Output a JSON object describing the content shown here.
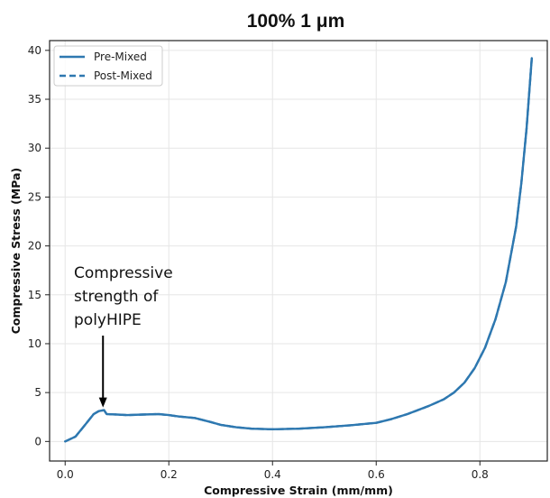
{
  "chart_data": {
    "type": "line",
    "title": "100% 1 μm",
    "xlabel": "Compressive Strain (mm/mm)",
    "ylabel": "Compressive Stress (MPa)",
    "xlim": [
      -0.03,
      0.93
    ],
    "ylim": [
      -2,
      41
    ],
    "xticks": [
      0.0,
      0.2,
      0.4,
      0.6,
      0.8
    ],
    "xtick_labels": [
      "0.0",
      "0.2",
      "0.4",
      "0.6",
      "0.8"
    ],
    "yticks": [
      0,
      5,
      10,
      15,
      20,
      25,
      30,
      35,
      40
    ],
    "ytick_labels": [
      "0",
      "5",
      "10",
      "15",
      "20",
      "25",
      "30",
      "35",
      "40"
    ],
    "grid": true,
    "legend": "top-left",
    "colors": {
      "series": "#2e78b0"
    },
    "series": [
      {
        "name": "Pre-Mixed",
        "style": "solid",
        "x": [
          0.0,
          0.02,
          0.04,
          0.055,
          0.065,
          0.075,
          0.08,
          0.1,
          0.12,
          0.15,
          0.18,
          0.2,
          0.22,
          0.25,
          0.28,
          0.3,
          0.33,
          0.36,
          0.4,
          0.45,
          0.5,
          0.55,
          0.6,
          0.63,
          0.66,
          0.7,
          0.73,
          0.75,
          0.77,
          0.79,
          0.81,
          0.83,
          0.85,
          0.87,
          0.88,
          0.89,
          0.9
        ],
        "y": [
          0.0,
          0.5,
          1.8,
          2.8,
          3.1,
          3.2,
          2.8,
          2.75,
          2.7,
          2.75,
          2.8,
          2.7,
          2.55,
          2.4,
          2.0,
          1.7,
          1.45,
          1.3,
          1.25,
          1.3,
          1.45,
          1.65,
          1.9,
          2.3,
          2.8,
          3.6,
          4.3,
          5.0,
          6.0,
          7.5,
          9.6,
          12.5,
          16.3,
          22.0,
          26.5,
          32.0,
          39.2
        ]
      },
      {
        "name": "Post-Mixed",
        "style": "dashed",
        "x": [
          0.0,
          0.02,
          0.04,
          0.055,
          0.065,
          0.075,
          0.08,
          0.1,
          0.12,
          0.15,
          0.18,
          0.2,
          0.22,
          0.25,
          0.28,
          0.3,
          0.33,
          0.36,
          0.4,
          0.45,
          0.5,
          0.55,
          0.6,
          0.63,
          0.66,
          0.7,
          0.73,
          0.75,
          0.77,
          0.79,
          0.81,
          0.83,
          0.85,
          0.87,
          0.88,
          0.89,
          0.9
        ],
        "y": [
          0.0,
          0.5,
          1.8,
          2.8,
          3.1,
          3.2,
          2.8,
          2.75,
          2.7,
          2.75,
          2.8,
          2.7,
          2.55,
          2.4,
          2.0,
          1.7,
          1.45,
          1.3,
          1.25,
          1.3,
          1.45,
          1.65,
          1.9,
          2.3,
          2.8,
          3.6,
          4.3,
          5.0,
          6.0,
          7.5,
          9.6,
          12.5,
          16.3,
          22.0,
          26.5,
          32.0,
          39.2
        ]
      }
    ],
    "annotation": {
      "lines": [
        "Compressive",
        "strength of",
        "polyHIPE"
      ],
      "point": [
        0.073,
        3.3
      ],
      "text_anchor": [
        0.0,
        22.0
      ]
    }
  }
}
